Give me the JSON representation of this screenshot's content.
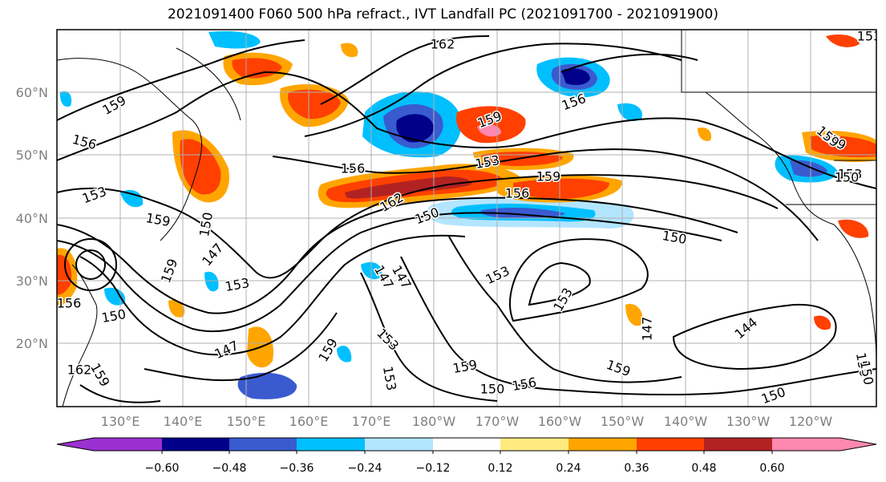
{
  "title": "2021091400 F060 500 hPa refract., IVT Landfall PC (2021091700 - 2021091900)",
  "lat_labels": [
    "60°N",
    "50°N",
    "40°N",
    "30°N",
    "20°N"
  ],
  "lon_labels": [
    "130°E",
    "140°E",
    "150°E",
    "160°E",
    "170°E",
    "180°W",
    "170°W",
    "160°W",
    "150°W",
    "140°W",
    "130°W",
    "120°W"
  ],
  "contour_labels": [
    "162",
    "159",
    "156",
    "153",
    "159",
    "150",
    "147",
    "159",
    "153",
    "147",
    "153",
    "153",
    "150",
    "159",
    "150",
    "147",
    "159",
    "153",
    "150",
    "156",
    "159",
    "144",
    "147",
    "150",
    "162",
    "159",
    "156",
    "153",
    "150",
    "156",
    "159",
    "162",
    "159",
    "156",
    "159",
    "153",
    "150",
    "153",
    "147",
    "150",
    "156",
    "159",
    "153",
    "150"
  ],
  "colorbar": {
    "colors": [
      "#9b30d0",
      "#00008b",
      "#3a5bd0",
      "#00bfff",
      "#b3e5ff",
      "#ffffff",
      "#ffeb80",
      "#ffa500",
      "#ff4000",
      "#b22222",
      "#ff88b0"
    ],
    "tick_labels": [
      "−0.60",
      "−0.48",
      "−0.36",
      "−0.24",
      "−0.12",
      "0.12",
      "0.24",
      "0.36",
      "0.48",
      "0.60"
    ]
  },
  "colors": {
    "frame": "#000000",
    "grid": "#b0b0b0",
    "tick_label": "#7f7f7f"
  }
}
